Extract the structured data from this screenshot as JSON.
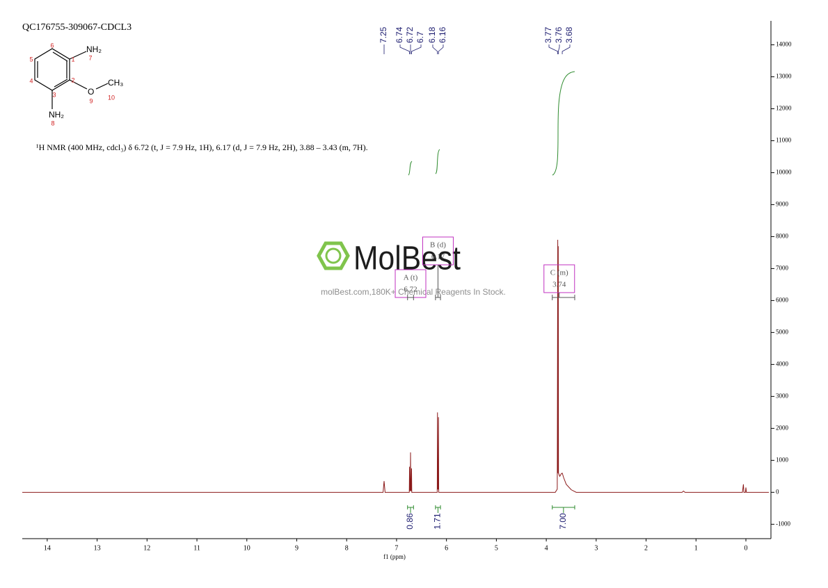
{
  "chart_data": {
    "type": "line",
    "title": "QC176755-309067-CDCL3",
    "description": "¹H NMR (400 MHz, cdcl₃) δ 6.72 (t, J = 7.9 Hz, 1H), 6.17 (d, J = 7.9 Hz, 2H), 3.88 – 3.43 (m, 7H).",
    "xlabel": "f1 (ppm)",
    "x": [
      14.5,
      7.27,
      7.25,
      7.23,
      6.77,
      6.745,
      6.74,
      6.735,
      6.725,
      6.72,
      6.715,
      6.705,
      6.7,
      6.695,
      6.67,
      6.21,
      6.185,
      6.18,
      6.175,
      6.165,
      6.16,
      6.155,
      6.13,
      3.82,
      3.78,
      3.77,
      3.765,
      3.76,
      3.755,
      3.73,
      3.7,
      3.68,
      3.65,
      3.6,
      3.5,
      3.4,
      1.28,
      1.25,
      1.22,
      0.07,
      0.05,
      0.04,
      0.01,
      0.0,
      -0.01,
      -0.46
    ],
    "values": [
      0,
      0,
      350,
      0,
      0,
      0,
      800,
      50,
      50,
      1250,
      50,
      50,
      750,
      0,
      0,
      0,
      0,
      2500,
      100,
      100,
      2350,
      0,
      0,
      0,
      100,
      7900,
      600,
      7700,
      600,
      500,
      580,
      600,
      450,
      250,
      80,
      0,
      0,
      40,
      0,
      0,
      250,
      0,
      0,
      150,
      0,
      0
    ],
    "color": "#8b1a1a",
    "xlim": [
      14.5,
      -0.46
    ],
    "ylim": [
      -1450,
      14750
    ],
    "xticks": [
      14,
      13,
      12,
      11,
      10,
      9,
      8,
      7,
      6,
      5,
      4,
      3,
      2,
      1,
      0
    ],
    "yticks": [
      -1000,
      0,
      1000,
      2000,
      3000,
      4000,
      5000,
      6000,
      7000,
      8000,
      9000,
      10000,
      11000,
      12000,
      13000,
      14000
    ],
    "peak_labels": [
      7.25,
      6.74,
      6.72,
      6.7,
      6.18,
      6.16,
      3.77,
      3.76,
      3.68
    ],
    "integrals": {
      "from": [
        6.78,
        6.22,
        3.88
      ],
      "to": [
        6.66,
        6.12,
        3.43
      ],
      "values": [
        0.86,
        1.71,
        7
      ],
      "value_labels": [
        "0.86",
        "1.71",
        "7.00"
      ]
    },
    "multiplets": {
      "labels": [
        "A (t)",
        "B (d)",
        "C (m)"
      ],
      "shifts": [
        6.72,
        6.17,
        3.74
      ],
      "from": [
        6.78,
        6.22,
        3.88
      ],
      "to": [
        6.66,
        6.12,
        3.43
      ]
    }
  },
  "structure": {
    "groups": [
      "NH₂",
      "O",
      "CH₃",
      "NH₂"
    ],
    "atom_numbers": [
      "1",
      "2",
      "3",
      "4",
      "5",
      "6",
      "7",
      "8",
      "9",
      "10"
    ]
  },
  "watermark": {
    "brand": "MolBest",
    "tagline": "molBest.com,180K+ Chemical Reagents In Stock."
  }
}
